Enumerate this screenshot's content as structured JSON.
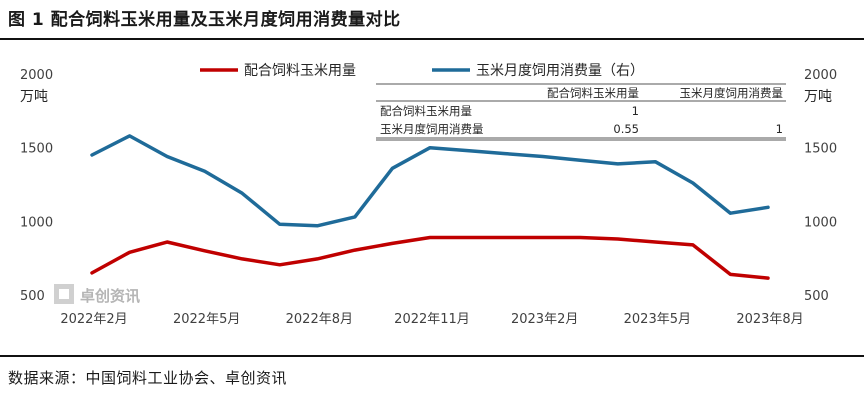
{
  "figure": {
    "title": "图 1  配合饲料玉米用量及玉米月度饲用消费量对比",
    "source": "数据来源：中国饲料工业协会、卓创资讯"
  },
  "watermark": "卓创资讯",
  "chart_data": {
    "type": "line",
    "title": "图 1  配合饲料玉米用量及玉米月度饲用消费量对比",
    "x": [
      "2022年2月",
      "2022年3月",
      "2022年4月",
      "2022年5月",
      "2022年6月",
      "2022年7月",
      "2022年8月",
      "2022年9月",
      "2022年10月",
      "2022年11月",
      "2022年12月",
      "2023年1月",
      "2023年2月",
      "2023年3月",
      "2023年4月",
      "2023年5月",
      "2023年6月",
      "2023年7月",
      "2023年8月"
    ],
    "x_tick_labels": [
      "2022年2月",
      "2022年5月",
      "2022年8月",
      "2022年11月",
      "2023年2月",
      "2023年5月",
      "2023年8月"
    ],
    "x_tick_indices": [
      0,
      3,
      6,
      9,
      12,
      15,
      18
    ],
    "y_left": {
      "label": "万吨",
      "ylim": [
        500,
        2000
      ],
      "ticks": [
        500,
        1000,
        1500,
        2000
      ]
    },
    "y_right": {
      "label": "万吨",
      "ylim": [
        500,
        2000
      ],
      "ticks": [
        500,
        1000,
        1500,
        2000
      ]
    },
    "series": [
      {
        "name": "配合饲料玉米用量",
        "axis": "left",
        "color": "#c00000",
        "values": [
          650,
          790,
          860,
          800,
          745,
          705,
          745,
          805,
          850,
          890,
          890,
          null,
          890,
          890,
          880,
          860,
          840,
          640,
          615
        ]
      },
      {
        "name": "玉米月度饲用消费量（右）",
        "axis": "right",
        "color": "#1f6b99",
        "values": [
          1450,
          1580,
          1440,
          1340,
          1190,
          980,
          970,
          1030,
          1360,
          1500,
          1480,
          1460,
          1440,
          1415,
          1390,
          1405,
          1260,
          1055,
          1095
        ]
      }
    ],
    "legend": {
      "placement": "top"
    },
    "grid": false,
    "correlation_table": {
      "headers": [
        "",
        "配合饲料玉米用量",
        "玉米月度饲用消费量"
      ],
      "rows": [
        [
          "配合饲料玉米用量",
          "1",
          ""
        ],
        [
          "玉米月度饲用消费量",
          "0.55",
          "1"
        ]
      ]
    }
  }
}
